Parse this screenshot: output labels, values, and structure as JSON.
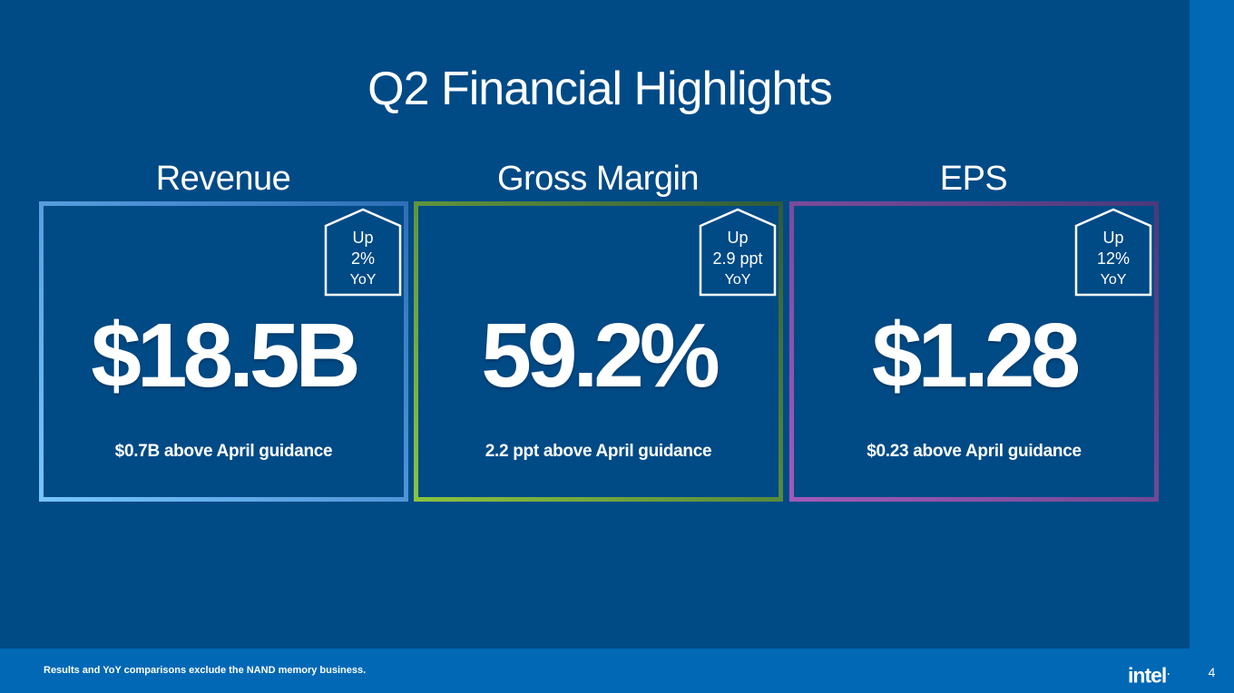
{
  "slide": {
    "title": "Q2 Financial Highlights",
    "page_number": "4"
  },
  "panels": [
    {
      "heading": "Revenue",
      "value": "$18.5B",
      "guidance": "$0.7B above April guidance",
      "badge": {
        "line1": "Up",
        "line2": "2%",
        "line3": "YoY"
      },
      "border_colors": [
        "#77c5ff",
        "#2d6fb6"
      ]
    },
    {
      "heading": "Gross Margin",
      "value": "59.2%",
      "guidance": "2.2 ppt above April guidance",
      "badge": {
        "line1": "Up",
        "line2": "2.9 ppt",
        "line3": "YoY"
      },
      "border_colors": [
        "#8ac43f",
        "#2e5a3a"
      ]
    },
    {
      "heading": "EPS",
      "value": "$1.28",
      "guidance": "$0.23 above April guidance",
      "badge": {
        "line1": "Up",
        "line2": "12%",
        "line3": "YoY"
      },
      "border_colors": [
        "#a25ab8",
        "#4a3a7a"
      ]
    }
  ],
  "footer": {
    "note": "Results and YoY comparisons exclude the NAND memory business.",
    "logo_text": "intel",
    "logo_dot": "."
  },
  "colors": {
    "background": "#004a86",
    "footer_bar": "#0068b5"
  }
}
